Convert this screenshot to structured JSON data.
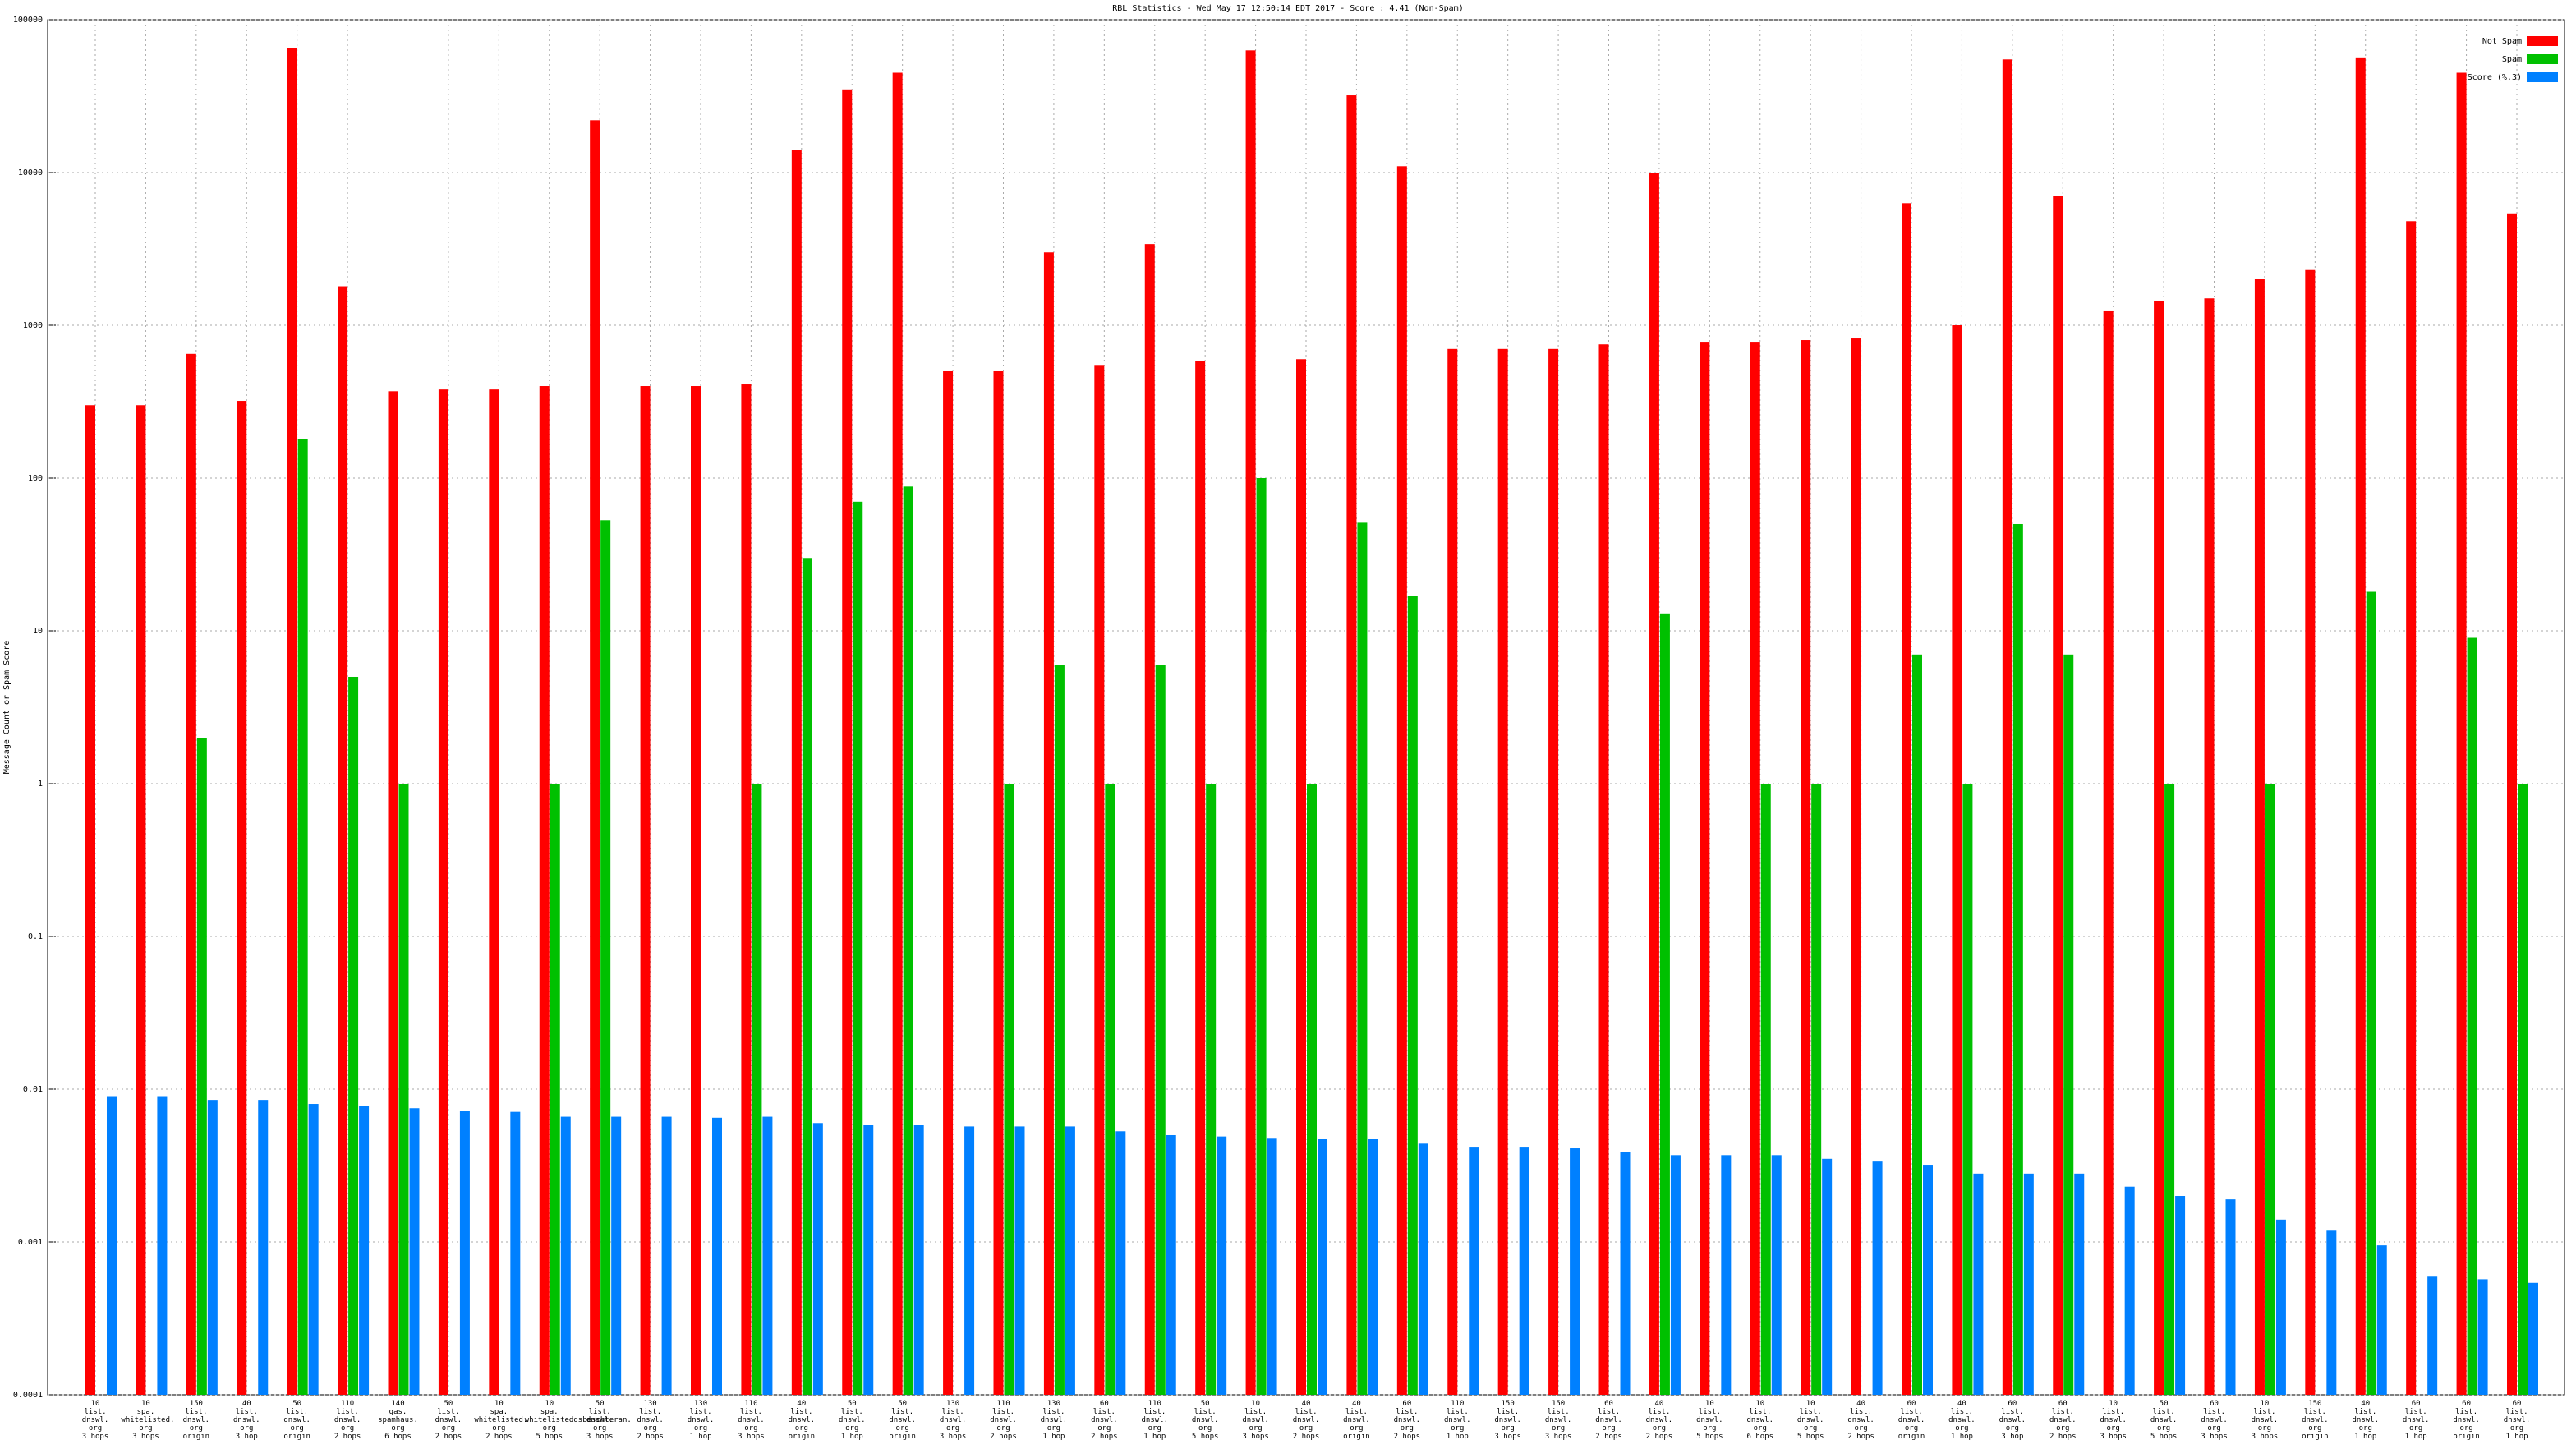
{
  "chart_data": {
    "type": "bar",
    "title": "RBL Statistics - Wed May 17 12:50:14 EDT 2017 - Score : 4.41 (Non-Spam)",
    "y_label": "Message Count or Spam Score",
    "log_scale": true,
    "grid": true,
    "legend": "top-right",
    "ylim": [
      0.0001,
      100000
    ],
    "yticks": [
      0.0001,
      0.001,
      0.01,
      0.1,
      1,
      10,
      100,
      1000,
      10000,
      100000
    ],
    "categories": [
      "10\nlist.\ndnswl.\norg\n3 hops",
      "10\nspa.\nwhitelisted.\norg\n3 hops",
      "150\nlist.\ndnswl.\norg\norigin",
      "40\nlist.\ndnswl.\norg\n3 hop",
      "50\nlist.\ndnswl.\norg\norigin",
      "110\nlist.\ndnswl.\norg\n2 hops",
      "140\ngas.\nspamhaus.\norg\n6 hops",
      "50\nlist.\ndnswl.\norg\n2 hops",
      "10\nspa.\nwhitelisted.\norg\n2 hops",
      "10\nspa.\nwhitelisteddsbeschteran.\norg\n5 hops",
      "50\nlist.\ndnswl.\norg\n3 hops",
      "130\nlist.\ndnswl.\norg\n2 hops",
      "130\nlist.\ndnswl.\norg\n1 hop",
      "110\nlist.\ndnswl.\norg\n3 hops",
      "40\nlist.\ndnswl.\norg\norigin",
      "50\nlist.\ndnswl.\norg\n1 hop",
      "50\nlist.\ndnswl.\norg\norigin",
      "130\nlist.\ndnswl.\norg\n3 hops",
      "110\nlist.\ndnswl.\norg\n2 hops",
      "130\nlist.\ndnswl.\norg\n1 hop",
      "60\nlist.\ndnswl.\norg\n2 hops",
      "110\nlist.\ndnswl.\norg\n1 hop",
      "50\nlist.\ndnswl.\norg\n5 hops",
      "10\nlist.\ndnswl.\norg\n3 hops",
      "40\nlist.\ndnswl.\norg\n2 hops",
      "40\nlist.\ndnswl.\norg\norigin",
      "60\nlist.\ndnswl.\norg\n2 hops",
      "110\nlist.\ndnswl.\norg\n1 hop",
      "150\nlist.\ndnswl.\norg\n3 hops",
      "150\nlist.\ndnswl.\norg\n3 hops",
      "60\nlist.\ndnswl.\norg\n2 hops",
      "40\nlist.\ndnswl.\norg\n2 hops",
      "10\nlist.\ndnswl.\norg\n5 hops",
      "10\nlist.\ndnswl.\norg\n6 hops",
      "10\nlist.\ndnswl.\norg\n5 hops",
      "40\nlist.\ndnswl.\norg\n2 hops",
      "60\nlist.\ndnswl.\norg\norigin",
      "40\nlist.\ndnswl.\norg\n1 hop",
      "60\nlist.\ndnswl.\norg\n3 hop",
      "60\nlist.\ndnswl.\norg\n2 hops",
      "10\nlist.\ndnswl.\norg\n3 hops",
      "50\nlist.\ndnswl.\norg\n5 hops",
      "60\nlist.\ndnswl.\norg\n3 hops",
      "10\nlist.\ndnswl.\norg\n3 hops",
      "150\nlist.\ndnswl.\norg\norigin",
      "40\nlist.\ndnswl.\norg\n1 hop",
      "60\nlist.\ndnswl.\norg\n1 hop",
      "60\nlist.\ndnswl.\norg\norigin",
      "60\nlist.\ndnswl.\norg\n1 hop"
    ],
    "series": [
      {
        "name": "Not Spam",
        "color": "#ff0000",
        "values": [
          300,
          300,
          650,
          320,
          65000,
          1800,
          370,
          380,
          380,
          400,
          22000,
          400,
          400,
          410,
          14000,
          35000,
          45000,
          500,
          500,
          3000,
          550,
          3400,
          580,
          63000,
          600,
          32000,
          11000,
          700,
          700,
          700,
          750,
          10000,
          780,
          780,
          800,
          820,
          6300,
          1000,
          55000,
          7000,
          1250,
          1450,
          1500,
          2000,
          2300,
          56000,
          4800,
          45000,
          5400
        ]
      },
      {
        "name": "Spam",
        "color": "#00c000",
        "values": [
          null,
          null,
          2,
          null,
          180,
          5,
          1,
          null,
          null,
          1,
          53,
          null,
          null,
          1,
          30,
          70,
          88,
          null,
          1,
          6,
          1,
          6,
          1,
          100,
          1,
          51,
          17,
          null,
          null,
          null,
          null,
          13,
          null,
          1,
          1,
          null,
          7,
          1,
          50,
          7,
          null,
          1,
          null,
          1,
          null,
          18,
          null,
          9,
          1
        ]
      },
      {
        "name": "Score (%.3)",
        "color": "#0080ff",
        "values": [
          0.009,
          0.009,
          0.0085,
          0.0085,
          0.008,
          0.0078,
          0.0075,
          0.0072,
          0.0071,
          0.0066,
          0.0066,
          0.0066,
          0.0065,
          0.0066,
          0.006,
          0.0058,
          0.0058,
          0.0057,
          0.0057,
          0.0057,
          0.0053,
          0.005,
          0.0049,
          0.0048,
          0.0047,
          0.0047,
          0.0044,
          0.0042,
          0.0042,
          0.0041,
          0.0039,
          0.0037,
          0.0037,
          0.0037,
          0.0035,
          0.0034,
          0.0032,
          0.0028,
          0.0028,
          0.0028,
          0.0023,
          0.002,
          0.0019,
          0.0014,
          0.0012,
          0.00095,
          0.0006,
          0.00057,
          0.00054
        ]
      }
    ]
  }
}
